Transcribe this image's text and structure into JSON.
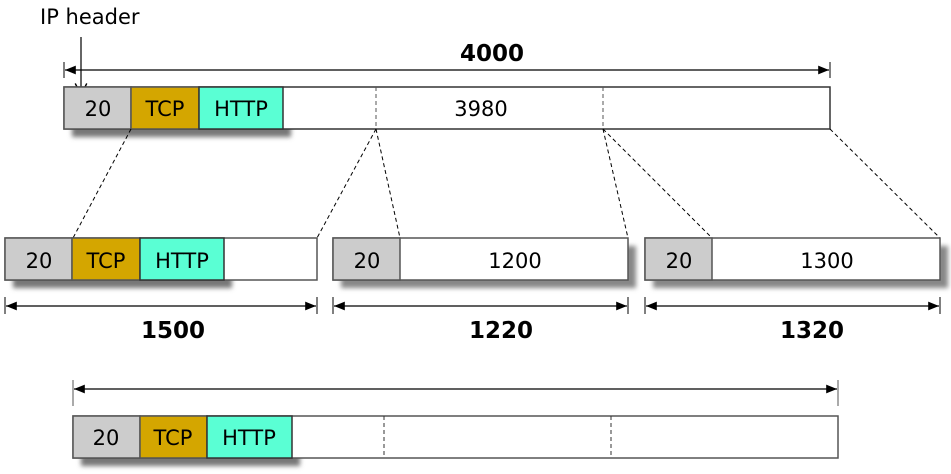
{
  "colors": {
    "ip_header": "#cccccc",
    "tcp": "#d4a600",
    "http": "#5affd4",
    "payload": "#ffffff"
  },
  "labels": {
    "ip_header_caption": "IP header",
    "ip": "20",
    "tcp": "TCP",
    "http": "HTTP"
  },
  "original": {
    "total_size": "4000",
    "payload": "3980"
  },
  "fragments": [
    {
      "size": "1500",
      "payload": ""
    },
    {
      "size": "1220",
      "payload": "1200"
    },
    {
      "size": "1320",
      "payload": "1300"
    }
  ]
}
